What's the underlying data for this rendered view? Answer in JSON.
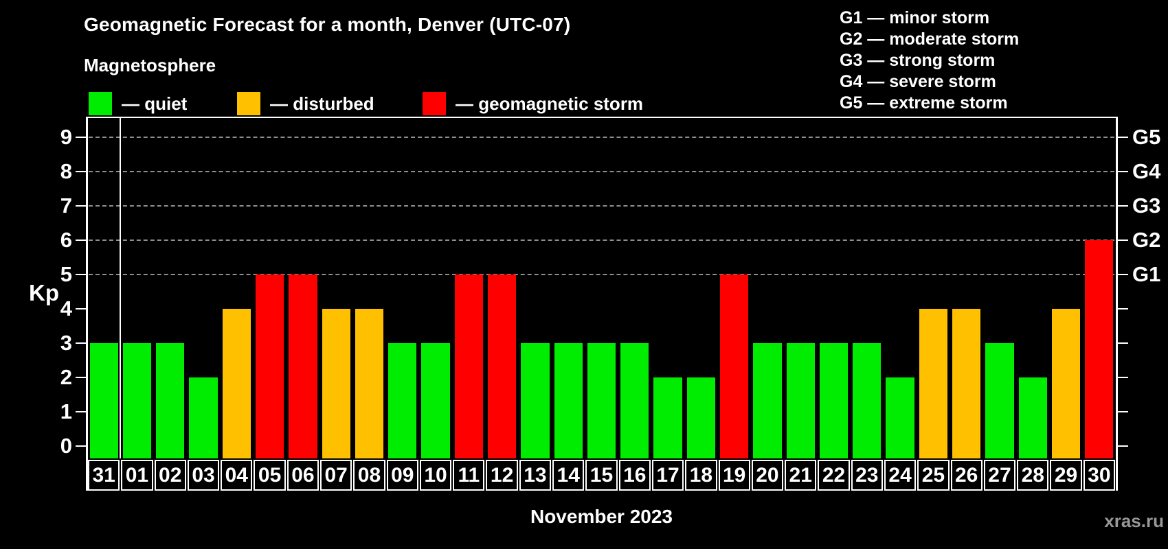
{
  "title": "Geomagnetic Forecast for a month, Denver (UTC-07)",
  "subtitle": "Magnetosphere",
  "legend": {
    "items": [
      {
        "status": "quiet",
        "label": "— quiet"
      },
      {
        "status": "disturbed",
        "label": "— disturbed"
      },
      {
        "status": "storm",
        "label": "— geomagnetic storm"
      }
    ]
  },
  "g_legend": [
    "G1 — minor storm",
    "G2 — moderate storm",
    "G3 — strong storm",
    "G4 — severe storm",
    "G5 — extreme storm"
  ],
  "colors": {
    "quiet": "#00EC00",
    "disturbed": "#FFC000",
    "storm": "#FF0000",
    "axis": "#FFFFFF",
    "grid": "#8F8F8F",
    "background": "#000000",
    "watermark_text": "#989898"
  },
  "y_axis": {
    "label": "Kp",
    "ticks": [
      0,
      1,
      2,
      3,
      4,
      5,
      6,
      7,
      8,
      9
    ],
    "grid_ticks": [
      5,
      6,
      7,
      8,
      9
    ]
  },
  "right_axis": {
    "labels": [
      {
        "kp": 5,
        "label": "G1"
      },
      {
        "kp": 6,
        "label": "G2"
      },
      {
        "kp": 7,
        "label": "G3"
      },
      {
        "kp": 8,
        "label": "G4"
      },
      {
        "kp": 9,
        "label": "G5"
      }
    ]
  },
  "x_axis": {
    "month_label": "November 2023",
    "month_boundary_after": "31"
  },
  "watermark": "xras.ru",
  "chart_data": {
    "type": "bar",
    "title": "Geomagnetic Forecast for a month, Denver (UTC-07)",
    "ylabel": "Kp",
    "ylim": [
      0,
      9.6
    ],
    "grid": "dashed horizontal at Kp 5-9",
    "legend_position": "top-left",
    "categories": [
      "31",
      "01",
      "02",
      "03",
      "04",
      "05",
      "06",
      "07",
      "08",
      "09",
      "10",
      "11",
      "12",
      "13",
      "14",
      "15",
      "16",
      "17",
      "18",
      "19",
      "20",
      "21",
      "22",
      "23",
      "24",
      "25",
      "26",
      "27",
      "28",
      "29",
      "30"
    ],
    "values": [
      3,
      3,
      3,
      2,
      4,
      5,
      5,
      4,
      4,
      3,
      3,
      5,
      5,
      3,
      3,
      3,
      3,
      2,
      2,
      5,
      3,
      3,
      3,
      3,
      2,
      4,
      4,
      3,
      2,
      4,
      6
    ],
    "statuses": [
      "quiet",
      "quiet",
      "quiet",
      "quiet",
      "disturbed",
      "storm",
      "storm",
      "disturbed",
      "disturbed",
      "quiet",
      "quiet",
      "storm",
      "storm",
      "quiet",
      "quiet",
      "quiet",
      "quiet",
      "quiet",
      "quiet",
      "storm",
      "quiet",
      "quiet",
      "quiet",
      "quiet",
      "quiet",
      "disturbed",
      "disturbed",
      "quiet",
      "quiet",
      "disturbed",
      "storm"
    ]
  }
}
